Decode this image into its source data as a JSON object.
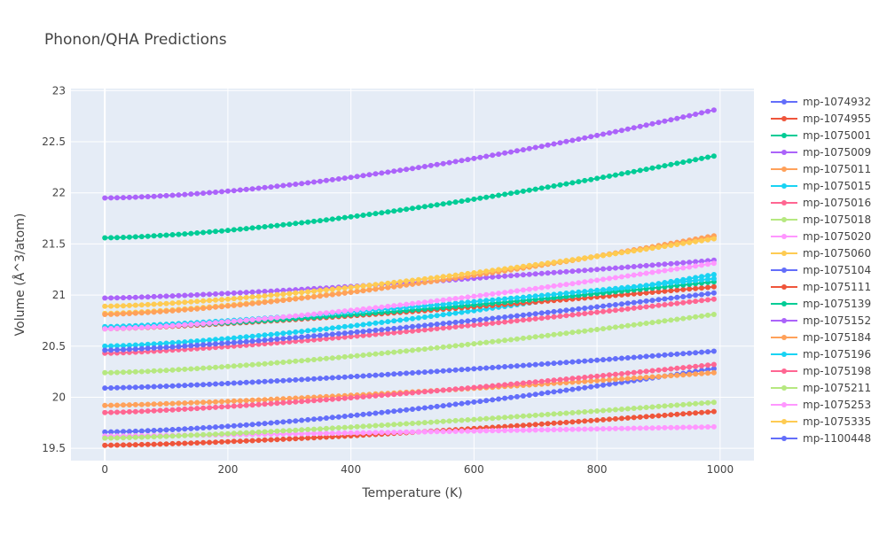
{
  "chart_data": {
    "type": "line",
    "title": "Phonon/QHA Predictions",
    "xlabel": "Temperature (K)",
    "ylabel": "Volume (Å^3/atom)",
    "xlim": [
      -55,
      1055
    ],
    "ylim": [
      19.38,
      23.02
    ],
    "xticks": [
      0,
      200,
      400,
      600,
      800,
      1000
    ],
    "xtick_labels": [
      "0",
      "200",
      "400",
      "600",
      "800",
      "1000"
    ],
    "yticks": [
      19.5,
      20,
      20.5,
      21,
      21.5,
      22,
      22.5,
      23
    ],
    "ytick_labels": [
      "19.5",
      "20",
      "20.5",
      "21",
      "21.5",
      "22",
      "22.5",
      "23"
    ],
    "grid": true,
    "legend": "right",
    "x_start": 0,
    "x_step": 10,
    "x_end": 990,
    "series": [
      {
        "name": "mp-1074932",
        "color": "#636efa",
        "v0": 19.66,
        "v1": 20.28,
        "shape": 1.5
      },
      {
        "name": "mp-1074955",
        "color": "#EF553B",
        "v0": 19.53,
        "v1": 19.86,
        "shape": 1.4
      },
      {
        "name": "mp-1075001",
        "color": "#00cc96",
        "v0": 21.56,
        "v1": 22.36,
        "shape": 1.5
      },
      {
        "name": "mp-1075009",
        "color": "#ab63fa",
        "v0": 21.95,
        "v1": 22.81,
        "shape": 1.6
      },
      {
        "name": "mp-1075011",
        "color": "#FFA15A",
        "v0": 19.92,
        "v1": 20.24,
        "shape": 1.3
      },
      {
        "name": "mp-1075015",
        "color": "#19d3f3",
        "v0": 20.5,
        "v1": 21.2,
        "shape": 1.4
      },
      {
        "name": "mp-1075016",
        "color": "#FF6692",
        "v0": 20.43,
        "v1": 20.96,
        "shape": 1.3
      },
      {
        "name": "mp-1075018",
        "color": "#B6E880",
        "v0": 20.24,
        "v1": 20.81,
        "shape": 1.4
      },
      {
        "name": "mp-1075020",
        "color": "#FF97FF",
        "v0": 19.62,
        "v1": 19.71,
        "shape": 1.2
      },
      {
        "name": "mp-1075060",
        "color": "#FECB52",
        "v0": 20.82,
        "v1": 21.57,
        "shape": 1.4
      },
      {
        "name": "mp-1075104",
        "color": "#636efa",
        "v0": 20.46,
        "v1": 21.02,
        "shape": 1.3
      },
      {
        "name": "mp-1075111",
        "color": "#EF553B",
        "v0": 20.67,
        "v1": 21.08,
        "shape": 1.3
      },
      {
        "name": "mp-1075139",
        "color": "#00cc96",
        "v0": 20.68,
        "v1": 21.13,
        "shape": 1.4
      },
      {
        "name": "mp-1075152",
        "color": "#ab63fa",
        "v0": 20.97,
        "v1": 21.34,
        "shape": 1.3
      },
      {
        "name": "mp-1075184",
        "color": "#FFA15A",
        "v0": 20.81,
        "v1": 21.58,
        "shape": 1.4
      },
      {
        "name": "mp-1075196",
        "color": "#19d3f3",
        "v0": 20.69,
        "v1": 21.16,
        "shape": 1.3
      },
      {
        "name": "mp-1075198",
        "color": "#FF6692",
        "v0": 19.85,
        "v1": 20.32,
        "shape": 1.3
      },
      {
        "name": "mp-1075211",
        "color": "#B6E880",
        "v0": 19.6,
        "v1": 19.95,
        "shape": 1.3
      },
      {
        "name": "mp-1075253",
        "color": "#FF97FF",
        "v0": 20.67,
        "v1": 21.31,
        "shape": 1.4
      },
      {
        "name": "mp-1075335",
        "color": "#FECB52",
        "v0": 20.89,
        "v1": 21.55,
        "shape": 1.4
      },
      {
        "name": "mp-1100448",
        "color": "#636efa",
        "v0": 20.09,
        "v1": 20.45,
        "shape": 1.3
      }
    ]
  }
}
